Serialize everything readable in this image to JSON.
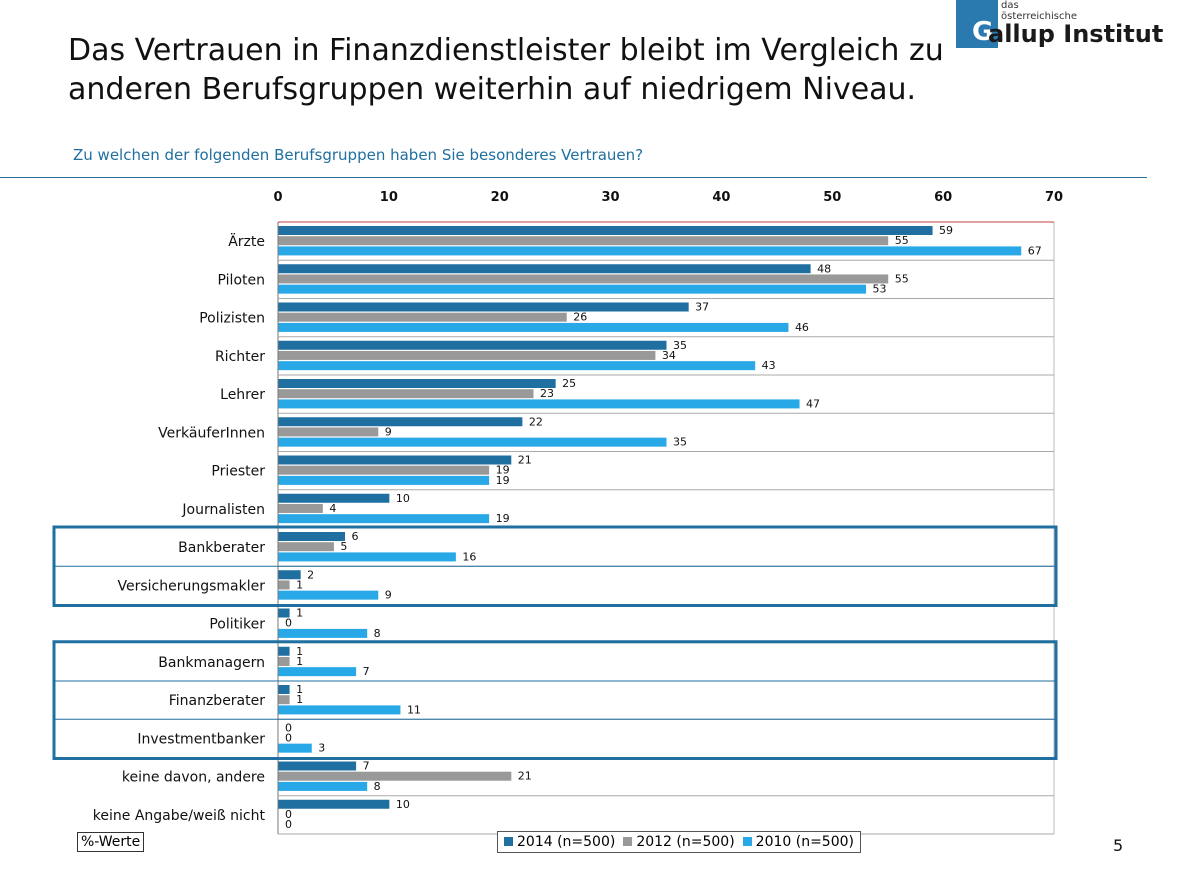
{
  "header": {
    "title_line1": "Das Vertrauen in Finanzdienstleister bleibt im Vergleich zu",
    "title_line2": "anderen Berufsgruppen weiterhin auf niedrigem Niveau.",
    "question": "Zu welchen der folgenden Berufsgruppen haben Sie besonderes Vertrauen?"
  },
  "logo": {
    "line1": "das",
    "line2": "österreichische",
    "letter": "G",
    "name": "allup Institut",
    "brand_color": "#2a7ab0"
  },
  "footer": {
    "unit_label": "%-Werte",
    "page_number": "5"
  },
  "chart_data": {
    "type": "bar",
    "orientation": "horizontal",
    "title": "",
    "xlabel": "",
    "ylabel": "",
    "xlim": [
      0,
      70
    ],
    "xticks": [
      0,
      10,
      20,
      30,
      40,
      50,
      60,
      70
    ],
    "grid": "horizontal separators between categories",
    "legend_position": "bottom",
    "categories": [
      "Ärzte",
      "Piloten",
      "Polizisten",
      "Richter",
      "Lehrer",
      "VerkäuferInnen",
      "Priester",
      "Journalisten",
      "Bankberater",
      "Versicherungsmakler",
      "Politiker",
      "Bankmanagern",
      "Finanzberater",
      "Investmentbanker",
      "keine davon, andere",
      "keine Angabe/weiß nicht"
    ],
    "series": [
      {
        "name": "2014 (n=500)",
        "color": "#1f6fa0",
        "values": [
          59,
          48,
          37,
          35,
          25,
          22,
          21,
          10,
          6,
          2,
          1,
          1,
          1,
          0,
          7,
          10
        ]
      },
      {
        "name": "2012 (n=500)",
        "color": "#999999",
        "values": [
          55,
          55,
          26,
          34,
          23,
          9,
          19,
          4,
          5,
          1,
          0,
          1,
          1,
          0,
          21,
          0
        ]
      },
      {
        "name": "2010 (n=500)",
        "color": "#29a8e8",
        "values": [
          67,
          53,
          46,
          43,
          47,
          35,
          19,
          19,
          16,
          9,
          8,
          7,
          11,
          3,
          8,
          0
        ]
      }
    ],
    "highlight_groups": [
      [
        "Bankberater",
        "Versicherungsmakler"
      ],
      [
        "Bankmanagern",
        "Finanzberater",
        "Investmentbanker"
      ]
    ],
    "highlight_color": "#1f6fa0"
  }
}
